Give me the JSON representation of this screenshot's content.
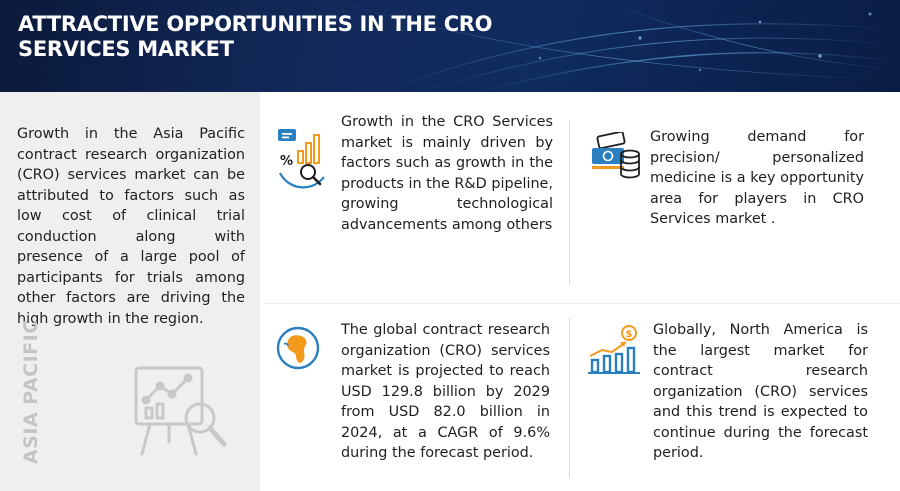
{
  "header": {
    "title": "ATTRACTIVE OPPORTUNITIES IN THE CRO SERVICES MARKET"
  },
  "region": {
    "label": "ASIA PACIFIC",
    "description": "Growth in the Asia Pacific contract research organization (CRO) services market can be attributed to factors such as low cost of clinical trial conduction along with presence of a large pool of participants for trials among other factors are driving the high growth in the region."
  },
  "cards": [
    {
      "icon": "analytics-chart-icon",
      "text": "Growth in the CRO Services market is mainly driven by factors such as growth in the products in the R&D pipeline, growing technological advancements among others"
    },
    {
      "icon": "money-coins-icon",
      "text": "Growing demand for precision/ personalized medicine is a key opportunity area for players in CRO Services market ."
    },
    {
      "icon": "globe-icon",
      "text": "The global contract research organization (CRO) services market is projected to reach USD 129.8 billion by 2029 from USD 82.0 billion in 2024, at a CAGR of 9.6% during the forecast period."
    },
    {
      "icon": "growth-bar-chart-icon",
      "text": "Globally, North America is the largest market for contract research organization (CRO) services and this trend is expected to continue during the forecast period."
    }
  ],
  "colors": {
    "banner": "#13295a",
    "accent_blue": "#2a7fc1",
    "accent_orange": "#f39a1d",
    "panel_gray": "#efefef"
  }
}
